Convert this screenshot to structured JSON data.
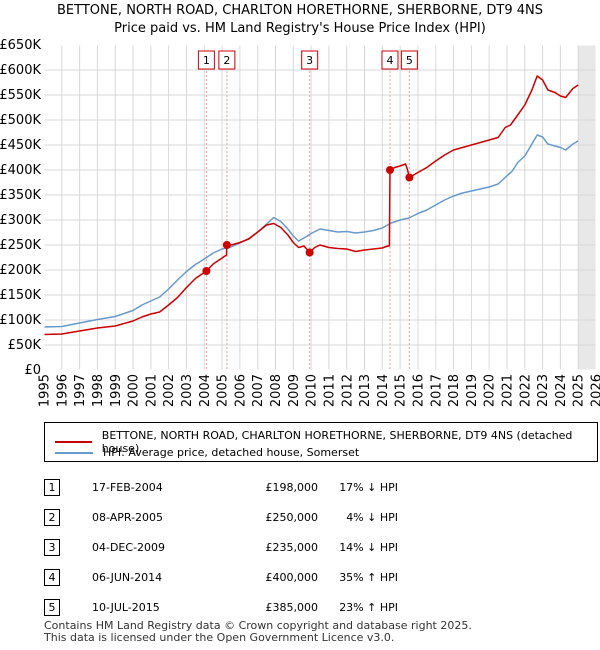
{
  "title_line1": "BETTONE, NORTH ROAD, CHARLTON HORETHORNE, SHERBORNE, DT9 4NS",
  "title_line2": "Price paid vs. HM Land Registry's House Price Index (HPI)",
  "chart_data": {
    "type": "line",
    "title": "Price paid vs. HM Land Registry's House Price Index (HPI)",
    "xlim": [
      1995,
      2026
    ],
    "ylim": [
      0,
      650000
    ],
    "x_ticks": [
      1995,
      1996,
      1997,
      1998,
      1999,
      2000,
      2001,
      2002,
      2003,
      2004,
      2005,
      2006,
      2007,
      2008,
      2009,
      2010,
      2011,
      2012,
      2013,
      2014,
      2015,
      2016,
      2017,
      2018,
      2019,
      2020,
      2021,
      2022,
      2023,
      2024,
      2025,
      2026
    ],
    "y_ticks": [
      0,
      50000,
      100000,
      150000,
      200000,
      250000,
      300000,
      350000,
      400000,
      450000,
      500000,
      550000,
      600000,
      650000
    ],
    "y_tick_labels": [
      "£0",
      "£50K",
      "£100K",
      "£150K",
      "£200K",
      "£250K",
      "£300K",
      "£350K",
      "£400K",
      "£450K",
      "£500K",
      "£550K",
      "£600K",
      "£650K"
    ],
    "forecast_start": 2025.0,
    "series": [
      {
        "name": "BETTONE, NORTH ROAD, CHARLTON HORETHORNE, SHERBORNE, DT9 4NS (detached house)",
        "color": "#cc0000",
        "points": [
          [
            1995.0,
            71000
          ],
          [
            1996.0,
            72000
          ],
          [
            1997.0,
            78000
          ],
          [
            1998.0,
            84000
          ],
          [
            1999.0,
            88000
          ],
          [
            2000.0,
            98000
          ],
          [
            2000.5,
            106000
          ],
          [
            2001.0,
            112000
          ],
          [
            2001.5,
            116000
          ],
          [
            2002.0,
            130000
          ],
          [
            2002.5,
            145000
          ],
          [
            2003.0,
            165000
          ],
          [
            2003.5,
            183000
          ],
          [
            2004.12,
            198000
          ],
          [
            2004.5,
            212000
          ],
          [
            2005.0,
            224000
          ],
          [
            2005.25,
            230000
          ],
          [
            2005.27,
            250000
          ],
          [
            2005.5,
            250000
          ],
          [
            2006.0,
            255000
          ],
          [
            2006.5,
            262000
          ],
          [
            2007.0,
            276000
          ],
          [
            2007.5,
            290000
          ],
          [
            2007.9,
            293000
          ],
          [
            2008.3,
            285000
          ],
          [
            2008.7,
            270000
          ],
          [
            2009.0,
            255000
          ],
          [
            2009.3,
            245000
          ],
          [
            2009.6,
            248000
          ],
          [
            2009.92,
            235000
          ],
          [
            2010.2,
            245000
          ],
          [
            2010.5,
            250000
          ],
          [
            2011.0,
            245000
          ],
          [
            2011.5,
            243000
          ],
          [
            2012.0,
            242000
          ],
          [
            2012.5,
            237000
          ],
          [
            2013.0,
            240000
          ],
          [
            2013.5,
            242000
          ],
          [
            2014.0,
            244000
          ],
          [
            2014.3,
            248000
          ],
          [
            2014.4,
            248000
          ],
          [
            2014.43,
            400000
          ],
          [
            2014.7,
            405000
          ],
          [
            2015.0,
            408000
          ],
          [
            2015.3,
            412000
          ],
          [
            2015.4,
            402000
          ],
          [
            2015.52,
            385000
          ],
          [
            2016.0,
            395000
          ],
          [
            2016.5,
            405000
          ],
          [
            2017.0,
            418000
          ],
          [
            2017.5,
            430000
          ],
          [
            2018.0,
            440000
          ],
          [
            2018.5,
            445000
          ],
          [
            2019.0,
            450000
          ],
          [
            2019.5,
            455000
          ],
          [
            2020.0,
            460000
          ],
          [
            2020.5,
            465000
          ],
          [
            2020.9,
            485000
          ],
          [
            2021.2,
            490000
          ],
          [
            2021.6,
            510000
          ],
          [
            2022.0,
            530000
          ],
          [
            2022.4,
            560000
          ],
          [
            2022.7,
            588000
          ],
          [
            2023.0,
            580000
          ],
          [
            2023.3,
            560000
          ],
          [
            2023.7,
            555000
          ],
          [
            2024.0,
            548000
          ],
          [
            2024.3,
            545000
          ],
          [
            2024.7,
            563000
          ],
          [
            2025.0,
            570000
          ]
        ]
      },
      {
        "name": "HPI: Average price, detached house, Somerset",
        "color": "#6699cc",
        "points": [
          [
            1995.0,
            86000
          ],
          [
            1996.0,
            87000
          ],
          [
            1997.0,
            94000
          ],
          [
            1998.0,
            101000
          ],
          [
            1999.0,
            107000
          ],
          [
            2000.0,
            119000
          ],
          [
            2000.5,
            130000
          ],
          [
            2001.0,
            138000
          ],
          [
            2001.5,
            146000
          ],
          [
            2002.0,
            162000
          ],
          [
            2002.5,
            180000
          ],
          [
            2003.0,
            197000
          ],
          [
            2003.5,
            211000
          ],
          [
            2004.0,
            222000
          ],
          [
            2004.5,
            234000
          ],
          [
            2005.0,
            242000
          ],
          [
            2005.5,
            246000
          ],
          [
            2006.0,
            254000
          ],
          [
            2006.5,
            263000
          ],
          [
            2007.0,
            276000
          ],
          [
            2007.5,
            292000
          ],
          [
            2007.9,
            305000
          ],
          [
            2008.3,
            297000
          ],
          [
            2008.7,
            282000
          ],
          [
            2009.0,
            268000
          ],
          [
            2009.3,
            258000
          ],
          [
            2009.7,
            266000
          ],
          [
            2010.0,
            273000
          ],
          [
            2010.5,
            282000
          ],
          [
            2011.0,
            279000
          ],
          [
            2011.5,
            276000
          ],
          [
            2012.0,
            277000
          ],
          [
            2012.5,
            274000
          ],
          [
            2013.0,
            276000
          ],
          [
            2013.5,
            279000
          ],
          [
            2014.0,
            284000
          ],
          [
            2014.5,
            294000
          ],
          [
            2015.0,
            300000
          ],
          [
            2015.5,
            304000
          ],
          [
            2016.0,
            313000
          ],
          [
            2016.5,
            320000
          ],
          [
            2017.0,
            330000
          ],
          [
            2017.5,
            340000
          ],
          [
            2018.0,
            348000
          ],
          [
            2018.5,
            354000
          ],
          [
            2019.0,
            358000
          ],
          [
            2019.5,
            362000
          ],
          [
            2020.0,
            366000
          ],
          [
            2020.5,
            372000
          ],
          [
            2020.9,
            385000
          ],
          [
            2021.3,
            398000
          ],
          [
            2021.6,
            415000
          ],
          [
            2022.0,
            428000
          ],
          [
            2022.4,
            452000
          ],
          [
            2022.7,
            470000
          ],
          [
            2023.0,
            466000
          ],
          [
            2023.3,
            452000
          ],
          [
            2023.7,
            448000
          ],
          [
            2024.0,
            445000
          ],
          [
            2024.3,
            440000
          ],
          [
            2024.7,
            452000
          ],
          [
            2025.0,
            458000
          ]
        ]
      }
    ],
    "sales": [
      {
        "id": "1",
        "x": 2004.12,
        "y": 198000
      },
      {
        "id": "2",
        "x": 2005.27,
        "y": 250000
      },
      {
        "id": "3",
        "x": 2009.92,
        "y": 235000
      },
      {
        "id": "4",
        "x": 2014.43,
        "y": 400000
      },
      {
        "id": "5",
        "x": 2015.52,
        "y": 385000
      }
    ]
  },
  "legend": {
    "property": "BETTONE, NORTH ROAD, CHARLTON HORETHORNE, SHERBORNE, DT9 4NS (detached house)",
    "hpi": "HPI: Average price, detached house, Somerset"
  },
  "transactions": [
    {
      "num": "1",
      "date": "17-FEB-2004",
      "price": "£198,000",
      "hpi": "17% ↓ HPI"
    },
    {
      "num": "2",
      "date": "08-APR-2005",
      "price": "£250,000",
      "hpi": "4% ↓ HPI"
    },
    {
      "num": "3",
      "date": "04-DEC-2009",
      "price": "£235,000",
      "hpi": "14% ↓ HPI"
    },
    {
      "num": "4",
      "date": "06-JUN-2014",
      "price": "£400,000",
      "hpi": "35% ↑ HPI"
    },
    {
      "num": "5",
      "date": "10-JUL-2015",
      "price": "£385,000",
      "hpi": "23% ↑ HPI"
    }
  ],
  "footer": {
    "line1": "Contains HM Land Registry data © Crown copyright and database right 2025.",
    "line2": "This data is licensed under the Open Government Licence v3.0."
  }
}
